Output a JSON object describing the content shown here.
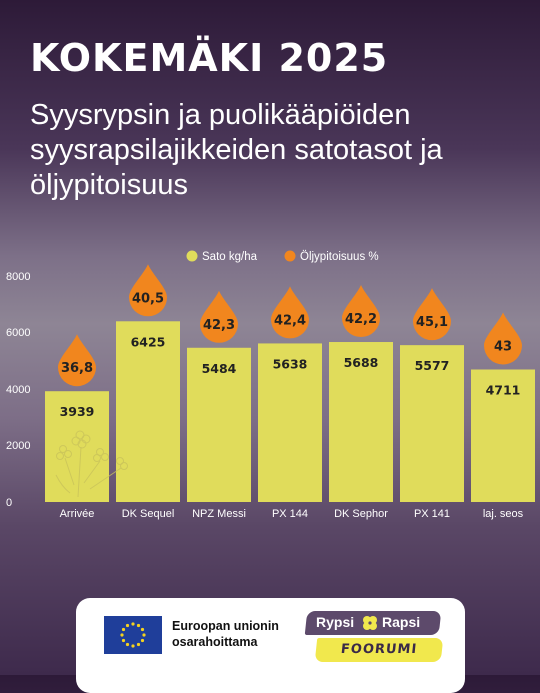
{
  "header": {
    "title": "KOKEMÄKI 2025",
    "subtitle": "Syysrypsin ja puolikääpiöiden syysrapsilajikkeiden satotasot ja öljypitoisuus"
  },
  "colors": {
    "bar": "#e0dc5b",
    "drop": "#f1861e",
    "axis_text": "#ffffff"
  },
  "chart_data": {
    "type": "bar",
    "categories": [
      "Arrivée",
      "DK Sequel",
      "NPZ Messi",
      "PX 144",
      "DK Sephor",
      "PX 141",
      "laj. seos"
    ],
    "series": [
      {
        "name": "Sato kg/ha",
        "values": [
          3939,
          6425,
          5484,
          5638,
          5688,
          5577,
          4711
        ],
        "labels": [
          "3939",
          "6425",
          "5484",
          "5638",
          "5688",
          "5577",
          "4711"
        ]
      },
      {
        "name": "Öljypitoisuus %",
        "values": [
          36.8,
          40.5,
          42.3,
          42.4,
          42.2,
          45.1,
          43
        ],
        "labels": [
          "36,8",
          "40,5",
          "42,3",
          "42,4",
          "42,2",
          "45,1",
          "43"
        ]
      }
    ],
    "ylim": [
      0,
      8000
    ],
    "yticks": [
      0,
      2000,
      4000,
      6000,
      8000
    ],
    "ytick_labels": [
      "0",
      "2000",
      "4000",
      "6000",
      "8000"
    ],
    "legend_position": "top",
    "grid": false
  },
  "footer": {
    "eu_text": "Euroopan unionin osarahoittama",
    "logo": {
      "word1": "Rypsi",
      "word2": "Rapsi",
      "word3": "FOORUMI"
    }
  }
}
